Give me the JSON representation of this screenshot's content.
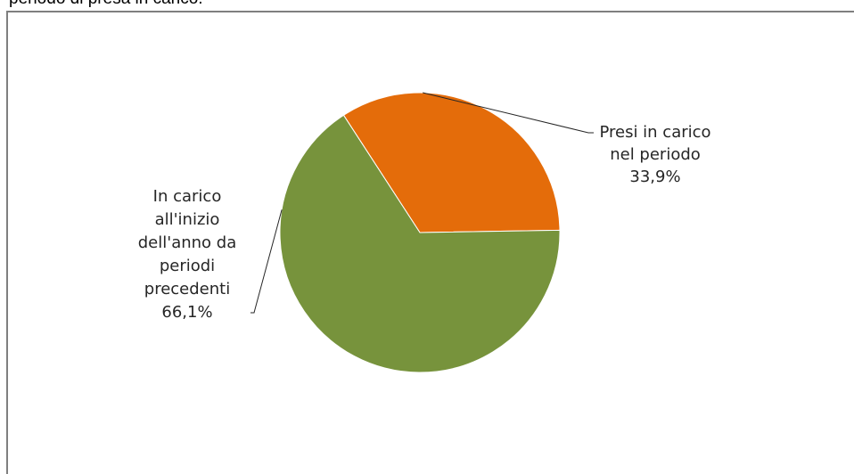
{
  "caption": "periodo di presa in carico.",
  "chart_data": {
    "type": "pie",
    "title": "",
    "slices": [
      {
        "label_lines": [
          "Presi in carico",
          "nel periodo"
        ],
        "value": 33.9,
        "value_label": "33,9%",
        "color": "#e46c0a"
      },
      {
        "label_lines": [
          "In carico",
          "all'inizio",
          "dell'anno da",
          "periodi",
          "precedenti"
        ],
        "value": 66.1,
        "value_label": "66,1%",
        "color": "#77933c"
      }
    ],
    "legend": "none"
  }
}
